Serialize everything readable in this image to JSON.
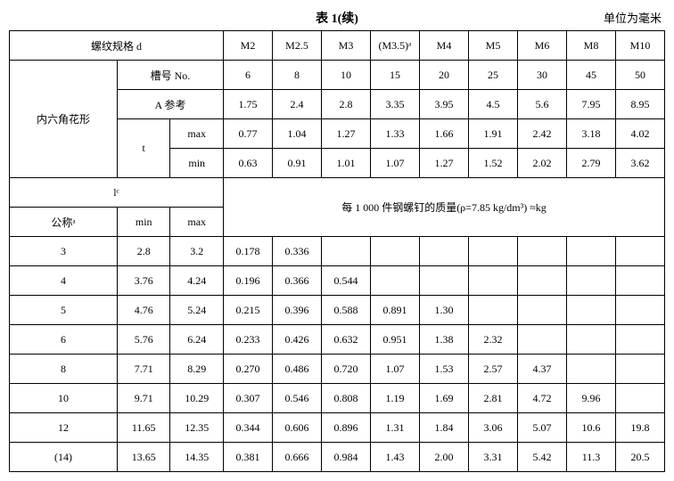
{
  "header": {
    "title": "表 1(续)",
    "unit": "单位为毫米"
  },
  "top": {
    "thread_spec": "螺纹规格 d",
    "cols": [
      "M2",
      "M2.5",
      "M3",
      "(M3.5)ᵃ",
      "M4",
      "M5",
      "M6",
      "M8",
      "M10"
    ],
    "group": "内六角花形",
    "slot_no": "槽号 No.",
    "slot_vals": [
      "6",
      "8",
      "10",
      "15",
      "20",
      "25",
      "30",
      "45",
      "50"
    ],
    "A_ref": "A   参考",
    "A_vals": [
      "1.75",
      "2.4",
      "2.8",
      "3.35",
      "3.95",
      "4.5",
      "5.6",
      "7.95",
      "8.95"
    ],
    "t": "t",
    "t_max": "max",
    "t_max_vals": [
      "0.77",
      "1.04",
      "1.27",
      "1.33",
      "1.66",
      "1.91",
      "2.42",
      "3.18",
      "4.02"
    ],
    "t_min": "min",
    "t_min_vals": [
      "0.63",
      "0.91",
      "1.01",
      "1.07",
      "1.27",
      "1.52",
      "2.02",
      "2.79",
      "3.62"
    ]
  },
  "mid": {
    "lc": "lᶜ",
    "mass_caption": "每 1 000 件钢螺钉的质量(ρ=7.85 kg/dm³)   ≈kg",
    "nominal": "公称ᵃ",
    "min": "min",
    "max": "max"
  },
  "rows": [
    {
      "nom": "3",
      "min": "2.8",
      "max": "3.2",
      "v": [
        "0.178",
        "0.336",
        "",
        "",
        "",
        "",
        "",
        "",
        ""
      ]
    },
    {
      "nom": "4",
      "min": "3.76",
      "max": "4.24",
      "v": [
        "0.196",
        "0.366",
        "0.544",
        "",
        "",
        "",
        "",
        "",
        ""
      ]
    },
    {
      "nom": "5",
      "min": "4.76",
      "max": "5.24",
      "v": [
        "0.215",
        "0.396",
        "0.588",
        "0.891",
        "1.30",
        "",
        "",
        "",
        ""
      ]
    },
    {
      "nom": "6",
      "min": "5.76",
      "max": "6.24",
      "v": [
        "0.233",
        "0.426",
        "0.632",
        "0.951",
        "1.38",
        "2.32",
        "",
        "",
        ""
      ]
    },
    {
      "nom": "8",
      "min": "7.71",
      "max": "8.29",
      "v": [
        "0.270",
        "0.486",
        "0.720",
        "1.07",
        "1.53",
        "2.57",
        "4.37",
        "",
        ""
      ]
    },
    {
      "nom": "10",
      "min": "9.71",
      "max": "10.29",
      "v": [
        "0.307",
        "0.546",
        "0.808",
        "1.19",
        "1.69",
        "2.81",
        "4.72",
        "9.96",
        ""
      ]
    },
    {
      "nom": "12",
      "min": "11.65",
      "max": "12.35",
      "v": [
        "0.344",
        "0.606",
        "0.896",
        "1.31",
        "1.84",
        "3.06",
        "5.07",
        "10.6",
        "19.8"
      ]
    },
    {
      "nom": "(14)",
      "min": "13.65",
      "max": "14.35",
      "v": [
        "0.381",
        "0.666",
        "0.984",
        "1.43",
        "2.00",
        "3.31",
        "5.42",
        "11.3",
        "20.5"
      ]
    }
  ]
}
